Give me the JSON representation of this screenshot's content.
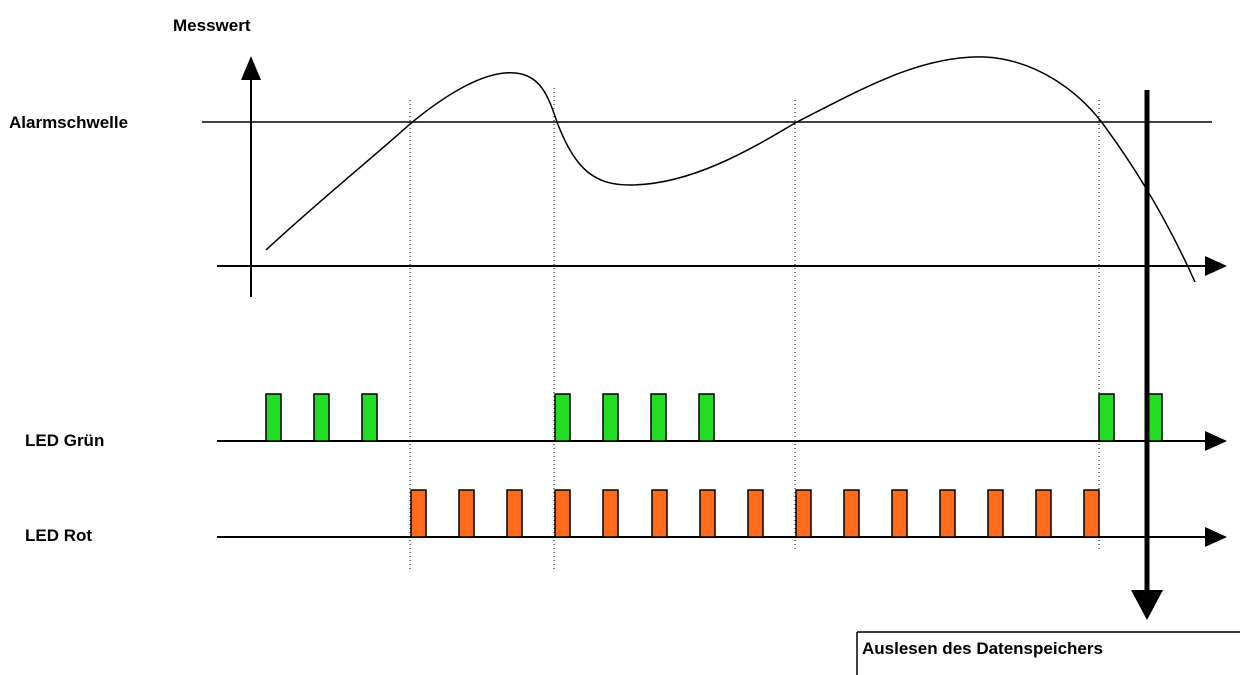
{
  "labels": {
    "y_axis": "Messwert",
    "threshold": "Alarmschwelle",
    "led_green": "LED Grün",
    "led_red": "LED Rot",
    "readout": "Auslesen des Datenspeichers"
  },
  "colors": {
    "line": "#000000",
    "green_pulse": "#22dd22",
    "red_pulse": "#ff6b1a"
  },
  "icons": [
    "arrow-up-icon",
    "arrow-right-icon",
    "arrow-down-icon"
  ],
  "green_pulse_count": 9,
  "red_pulse_count": 15
}
